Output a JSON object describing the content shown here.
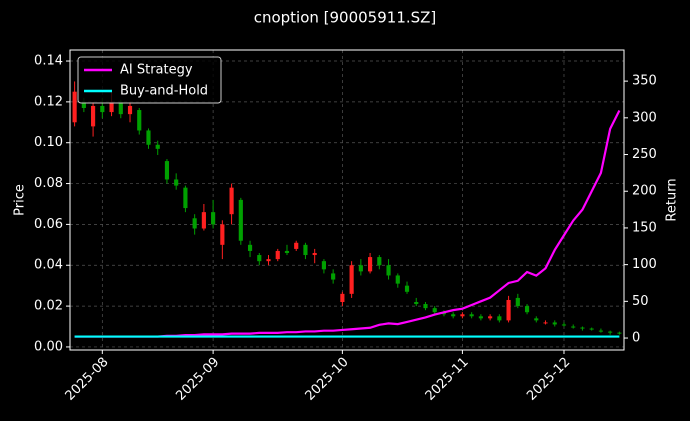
{
  "chart_data": {
    "type": "candlestick-returns",
    "title": "cnoption [90005911.SZ]",
    "y_label": "Price",
    "y2_label": "Return",
    "categories": [
      null,
      null,
      null,
      "2025-08",
      null,
      null,
      null,
      null,
      null,
      null,
      null,
      null,
      null,
      null,
      null,
      "2025-09",
      null,
      null,
      null,
      null,
      null,
      null,
      null,
      null,
      null,
      null,
      null,
      null,
      null,
      "2025-10",
      null,
      null,
      null,
      null,
      null,
      null,
      null,
      null,
      null,
      null,
      null,
      null,
      "2025-11",
      null,
      null,
      null,
      null,
      null,
      null,
      null,
      null,
      null,
      null,
      "2025-12",
      null,
      null,
      null,
      null,
      null,
      null
    ],
    "candles": {
      "open": [
        0.11,
        0.12,
        0.108,
        0.118,
        0.115,
        0.12,
        0.114,
        0.116,
        0.106,
        0.099,
        0.091,
        0.082,
        0.078,
        0.063,
        0.058,
        0.066,
        0.05,
        0.065,
        0.072,
        0.05,
        0.045,
        0.042,
        0.043,
        0.047,
        0.048,
        0.05,
        0.045,
        0.042,
        0.036,
        0.022,
        0.026,
        0.04,
        0.037,
        0.044,
        0.04,
        0.035,
        0.03,
        0.022,
        0.021,
        0.019,
        0.017,
        0.016,
        0.015,
        0.016,
        0.015,
        0.014,
        0.015,
        0.013,
        0.024,
        0.02,
        0.014,
        0.012,
        0.012,
        0.011,
        0.01,
        0.0095,
        0.009,
        0.008,
        0.0075,
        0.007
      ],
      "high": [
        0.13,
        0.122,
        0.12,
        0.122,
        0.125,
        0.121,
        0.12,
        0.117,
        0.107,
        0.101,
        0.092,
        0.085,
        0.079,
        0.065,
        0.07,
        0.072,
        0.062,
        0.08,
        0.073,
        0.052,
        0.046,
        0.045,
        0.048,
        0.05,
        0.052,
        0.051,
        0.048,
        0.043,
        0.038,
        0.027,
        0.042,
        0.043,
        0.046,
        0.045,
        0.043,
        0.036,
        0.032,
        0.024,
        0.022,
        0.02,
        0.018,
        0.017,
        0.017,
        0.017,
        0.016,
        0.016,
        0.016,
        0.025,
        0.026,
        0.021,
        0.015,
        0.013,
        0.013,
        0.012,
        0.011,
        0.01,
        0.0095,
        0.009,
        0.008,
        0.0075
      ],
      "low": [
        0.108,
        0.115,
        0.103,
        0.112,
        0.113,
        0.112,
        0.11,
        0.104,
        0.097,
        0.094,
        0.08,
        0.077,
        0.066,
        0.055,
        0.057,
        0.058,
        0.043,
        0.06,
        0.05,
        0.044,
        0.04,
        0.04,
        0.042,
        0.045,
        0.047,
        0.043,
        0.041,
        0.036,
        0.031,
        0.02,
        0.024,
        0.035,
        0.036,
        0.038,
        0.033,
        0.029,
        0.026,
        0.02,
        0.018,
        0.016,
        0.015,
        0.014,
        0.014,
        0.014,
        0.013,
        0.013,
        0.012,
        0.012,
        0.019,
        0.016,
        0.012,
        0.011,
        0.01,
        0.01,
        0.009,
        0.008,
        0.008,
        0.007,
        0.006,
        0.006
      ],
      "close": [
        0.125,
        0.117,
        0.118,
        0.115,
        0.12,
        0.114,
        0.118,
        0.106,
        0.099,
        0.097,
        0.082,
        0.079,
        0.068,
        0.058,
        0.066,
        0.06,
        0.06,
        0.078,
        0.052,
        0.047,
        0.042,
        0.043,
        0.047,
        0.046,
        0.051,
        0.045,
        0.046,
        0.038,
        0.033,
        0.026,
        0.04,
        0.037,
        0.044,
        0.04,
        0.035,
        0.031,
        0.027,
        0.021,
        0.019,
        0.017,
        0.016,
        0.015,
        0.016,
        0.015,
        0.014,
        0.015,
        0.013,
        0.023,
        0.02,
        0.017,
        0.013,
        0.012,
        0.011,
        0.0105,
        0.0095,
        0.009,
        0.0085,
        0.0075,
        0.007,
        0.0065
      ],
      "up_color": "#ff2020",
      "down_color": "#00a000"
    },
    "series": [
      {
        "name": "AI Strategy",
        "color": "#ff00ff",
        "axis": "y2",
        "values": [
          2,
          2,
          2,
          2,
          2,
          2,
          2,
          2,
          2,
          2,
          3,
          3,
          4,
          4,
          5,
          5,
          5,
          6,
          6,
          6,
          7,
          7,
          7,
          8,
          8,
          9,
          9,
          10,
          10,
          11,
          12,
          13,
          14,
          18,
          20,
          19,
          22,
          25,
          28,
          32,
          35,
          38,
          40,
          45,
          50,
          55,
          65,
          75,
          78,
          90,
          85,
          95,
          120,
          140,
          160,
          175,
          200,
          225,
          285,
          310
        ]
      },
      {
        "name": "Buy-and-Hold",
        "color": "#00ffff",
        "axis": "y2",
        "values": [
          2,
          2,
          2,
          2,
          2,
          2,
          2,
          2,
          2,
          2,
          2,
          2,
          2,
          2,
          2,
          2,
          2,
          2,
          2,
          2,
          2,
          2,
          2,
          2,
          2,
          2,
          2,
          2,
          2,
          2,
          2,
          2,
          2,
          2,
          2,
          2,
          2,
          2,
          2,
          2,
          2,
          2,
          2,
          2,
          2,
          2,
          2,
          2,
          2,
          2,
          2,
          2,
          2,
          2,
          2,
          2,
          2,
          2,
          2,
          2
        ]
      }
    ],
    "ylim": [
      -0.0015,
      0.1454
    ],
    "yticks": [
      {
        "value": 0,
        "label": "0.00"
      },
      {
        "value": 0.02,
        "label": "0.02"
      },
      {
        "value": 0.04,
        "label": "0.04"
      },
      {
        "value": 0.06,
        "label": "0.06"
      },
      {
        "value": 0.08,
        "label": "0.08"
      },
      {
        "value": 0.1,
        "label": "0.10"
      },
      {
        "value": 0.12,
        "label": "0.12"
      },
      {
        "value": 0.14,
        "label": "0.14"
      }
    ],
    "y2lim": [
      -16.3,
      392.4
    ],
    "y2ticks": [
      0,
      50,
      100,
      150,
      200,
      250,
      300,
      350
    ],
    "grid": true,
    "legend": "upper-left"
  }
}
